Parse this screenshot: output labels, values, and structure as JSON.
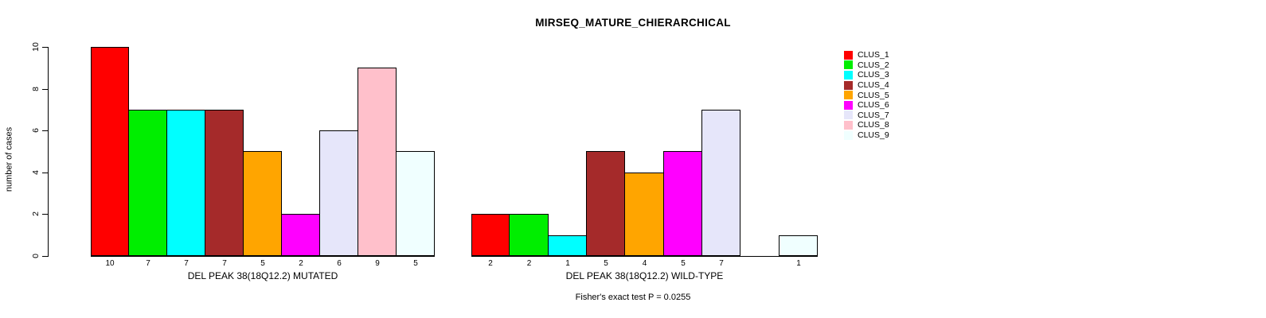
{
  "title": "MIRSEQ_MATURE_CHIERARCHICAL",
  "y_axis": {
    "label": "number of cases",
    "ticks": [
      0,
      2,
      4,
      6,
      8,
      10
    ],
    "range": [
      0,
      10
    ]
  },
  "legend": {
    "entries": [
      {
        "label": "CLUS_1",
        "color": "#FF0000"
      },
      {
        "label": "CLUS_2",
        "color": "#00EE00"
      },
      {
        "label": "CLUS_3",
        "color": "#00FFFF"
      },
      {
        "label": "CLUS_4",
        "color": "#A52A2A"
      },
      {
        "label": "CLUS_5",
        "color": "#FFA500"
      },
      {
        "label": "CLUS_6",
        "color": "#FF00FF"
      },
      {
        "label": "CLUS_7",
        "color": "#E6E6FA"
      },
      {
        "label": "CLUS_8",
        "color": "#FFC0CB"
      },
      {
        "label": "CLUS_9",
        "color": "#F0FFFF"
      }
    ]
  },
  "annotation": "Fisher's exact test P = 0.0255",
  "chart_data": [
    {
      "type": "bar",
      "name": "mutated",
      "xlabel": "DEL PEAK 38(18Q12.2) MUTATED",
      "ylabel": "number of cases",
      "ylim": [
        0,
        10
      ],
      "categories": [
        "CLUS_1",
        "CLUS_2",
        "CLUS_3",
        "CLUS_4",
        "CLUS_5",
        "CLUS_6",
        "CLUS_7",
        "CLUS_8",
        "CLUS_9"
      ],
      "values": [
        10,
        7,
        7,
        7,
        5,
        2,
        6,
        9,
        5
      ],
      "colors": [
        "#FF0000",
        "#00EE00",
        "#00FFFF",
        "#A52A2A",
        "#FFA500",
        "#FF00FF",
        "#E6E6FA",
        "#FFC0CB",
        "#F0FFFF"
      ],
      "legend_position": "right",
      "grid": false
    },
    {
      "type": "bar",
      "name": "wild-type",
      "xlabel": "DEL PEAK 38(18Q12.2) WILD-TYPE",
      "ylabel": "number of cases",
      "ylim": [
        0,
        10
      ],
      "categories": [
        "CLUS_1",
        "CLUS_2",
        "CLUS_3",
        "CLUS_4",
        "CLUS_5",
        "CLUS_6",
        "CLUS_7",
        "CLUS_8",
        "CLUS_9"
      ],
      "values": [
        2,
        2,
        1,
        5,
        4,
        5,
        7,
        0,
        1
      ],
      "colors": [
        "#FF0000",
        "#00EE00",
        "#00FFFF",
        "#A52A2A",
        "#FFA500",
        "#FF00FF",
        "#E6E6FA",
        "#FFC0CB",
        "#F0FFFF"
      ],
      "legend_position": "right",
      "grid": false
    }
  ]
}
